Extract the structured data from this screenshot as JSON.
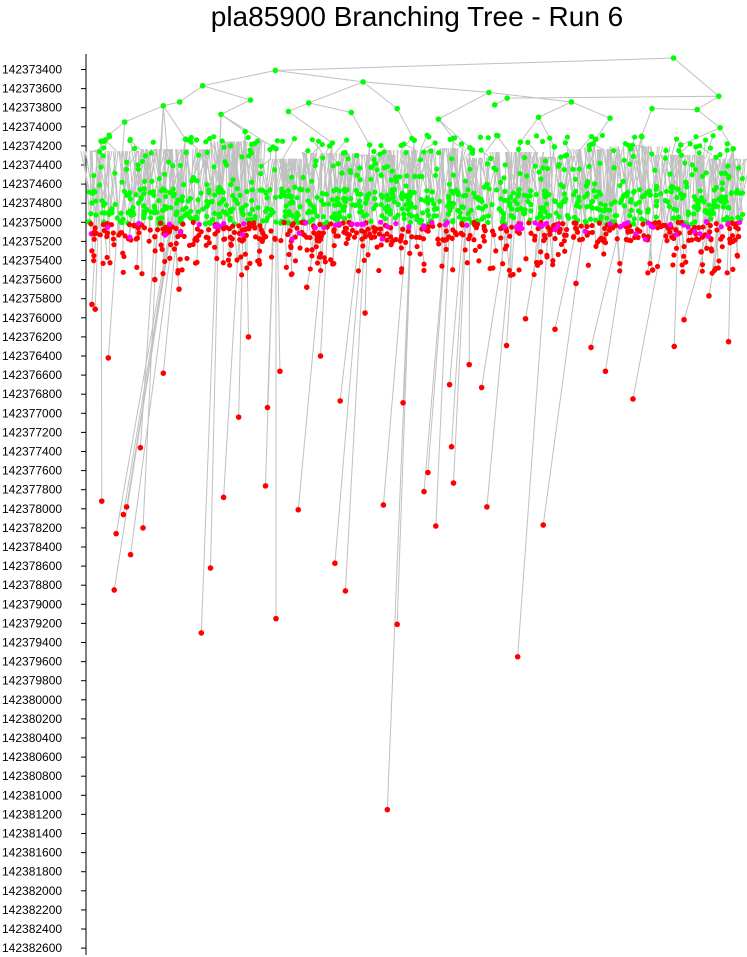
{
  "chart_data": {
    "type": "scatter",
    "title": "pla85900 Branching Tree - Run 6",
    "xlabel": "",
    "ylabel": "",
    "y_axis": {
      "inverted": true,
      "min": 142373300,
      "max": 142382600,
      "tick_step": 200,
      "tick_labels": [
        "142373400",
        "142373600",
        "142373800",
        "142374000",
        "142374200",
        "142374400",
        "142374600",
        "142374800",
        "142375000",
        "142375200",
        "142375400",
        "142375600",
        "142375800",
        "142376000",
        "142376200",
        "142376400",
        "142376600",
        "142376800",
        "142377000",
        "142377200",
        "142377400",
        "142377600",
        "142377800",
        "142378000",
        "142378200",
        "142378400",
        "142378600",
        "142378800",
        "142379000",
        "142379200",
        "142379400",
        "142379600",
        "142379800",
        "142380000",
        "142380200",
        "142380400",
        "142380600",
        "142380800",
        "142381000",
        "142381200",
        "142381400",
        "142381600",
        "142381800",
        "142382000",
        "142382200",
        "142382400",
        "142382600"
      ]
    },
    "x_axis": {
      "visible": false,
      "min": 0,
      "max": 100
    },
    "grid": false,
    "legend": "none",
    "colors": {
      "upper": "#00ff00",
      "lower": "#ff0000",
      "boundary": "#ff00ff",
      "edge": "#c0c0c0"
    },
    "nodes": [
      {
        "id": "r",
        "x": 89.4,
        "y": 142373280,
        "c": "upper"
      },
      {
        "id": "a1",
        "x": 28.6,
        "y": 142373410,
        "c": "upper",
        "p": "r"
      },
      {
        "id": "a2",
        "x": 96.3,
        "y": 142373680,
        "c": "upper",
        "p": "r"
      },
      {
        "id": "b1",
        "x": 17.5,
        "y": 142373570,
        "c": "upper",
        "p": "a1"
      },
      {
        "id": "b2",
        "x": 42.0,
        "y": 142373530,
        "c": "upper",
        "p": "a1"
      },
      {
        "id": "b3",
        "x": 14.0,
        "y": 142373740,
        "c": "upper",
        "p": "b1"
      },
      {
        "id": "b4",
        "x": 24.8,
        "y": 142373720,
        "c": "upper",
        "p": "b1"
      },
      {
        "id": "b5",
        "x": 33.7,
        "y": 142373750,
        "c": "upper",
        "p": "b2"
      },
      {
        "id": "b6",
        "x": 61.2,
        "y": 142373640,
        "c": "upper",
        "p": "b2"
      },
      {
        "id": "b7",
        "x": 64.0,
        "y": 142373700,
        "c": "upper",
        "p": "a2"
      },
      {
        "id": "b8",
        "x": 93.0,
        "y": 142373820,
        "c": "upper",
        "p": "a2"
      },
      {
        "id": "b9",
        "x": 73.8,
        "y": 142373740,
        "c": "upper",
        "p": "b6"
      },
      {
        "id": "c1",
        "x": 11.5,
        "y": 142373780,
        "c": "upper",
        "p": "b3"
      },
      {
        "id": "c2",
        "x": 5.6,
        "y": 142373950,
        "c": "upper",
        "p": "c1"
      },
      {
        "id": "c3",
        "x": 20.3,
        "y": 142373870,
        "c": "upper",
        "p": "b4"
      },
      {
        "id": "c4",
        "x": 30.6,
        "y": 142373840,
        "c": "upper",
        "p": "b5"
      },
      {
        "id": "c5",
        "x": 40.2,
        "y": 142373850,
        "c": "upper",
        "p": "b5"
      },
      {
        "id": "c6",
        "x": 47.2,
        "y": 142373810,
        "c": "upper",
        "p": "b2"
      },
      {
        "id": "c7",
        "x": 53.5,
        "y": 142373920,
        "c": "upper",
        "p": "b6"
      },
      {
        "id": "c8",
        "x": 62.1,
        "y": 142373770,
        "c": "upper",
        "p": "b7"
      },
      {
        "id": "c9",
        "x": 68.8,
        "y": 142373900,
        "c": "upper",
        "p": "b9"
      },
      {
        "id": "c10",
        "x": 79.7,
        "y": 142373910,
        "c": "upper",
        "p": "b9"
      },
      {
        "id": "c11",
        "x": 86.1,
        "y": 142373810,
        "c": "upper",
        "p": "b8"
      },
      {
        "id": "c12",
        "x": 96.5,
        "y": 142374010,
        "c": "upper",
        "p": "b8"
      },
      {
        "id": "m1",
        "x": 2.0,
        "y": 142374150,
        "c": "upper",
        "p": "c2"
      },
      {
        "id": "m2",
        "x": 14.9,
        "y": 142374130,
        "c": "upper",
        "p": "c1"
      },
      {
        "id": "m3",
        "x": 24.0,
        "y": 142374050,
        "c": "upper",
        "p": "c3"
      },
      {
        "id": "m4",
        "x": 28.7,
        "y": 142374230,
        "c": "upper",
        "p": "c3"
      },
      {
        "id": "m5",
        "x": 37.3,
        "y": 142374170,
        "c": "upper",
        "p": "c4"
      },
      {
        "id": "m6",
        "x": 43.0,
        "y": 142374190,
        "c": "upper",
        "p": "c5"
      },
      {
        "id": "m7",
        "x": 49.8,
        "y": 142374140,
        "c": "upper",
        "p": "c6"
      },
      {
        "id": "m8",
        "x": 55.8,
        "y": 142374120,
        "c": "upper",
        "p": "c7"
      },
      {
        "id": "m9",
        "x": 58.3,
        "y": 142374220,
        "c": "upper",
        "p": "c7"
      },
      {
        "id": "m10",
        "x": 66.0,
        "y": 142374160,
        "c": "upper",
        "p": "c9"
      },
      {
        "id": "m11",
        "x": 71.2,
        "y": 142374210,
        "c": "upper",
        "p": "c9"
      },
      {
        "id": "m12",
        "x": 77.5,
        "y": 142374130,
        "c": "upper",
        "p": "c10"
      },
      {
        "id": "m13",
        "x": 84.5,
        "y": 142374100,
        "c": "upper",
        "p": "c11"
      },
      {
        "id": "m14",
        "x": 90.5,
        "y": 142374190,
        "c": "upper",
        "p": "c12"
      },
      {
        "id": "m15",
        "x": 98.5,
        "y": 142374230,
        "c": "upper",
        "p": "c12"
      },
      {
        "id": "k1",
        "x": 0.9,
        "y": 142375120,
        "c": "lower",
        "p": "m1"
      },
      {
        "id": "k2",
        "x": 0.6,
        "y": 142375860,
        "c": "lower",
        "p": "m1"
      },
      {
        "id": "k3",
        "x": 1.1,
        "y": 142375910,
        "c": "lower",
        "p": "m1"
      },
      {
        "id": "k4",
        "x": 3.1,
        "y": 142376420,
        "c": "lower",
        "p": "c2"
      },
      {
        "id": "k5",
        "x": 2.1,
        "y": 142377920,
        "c": "lower",
        "p": "m1"
      },
      {
        "id": "k6",
        "x": 5.4,
        "y": 142378060,
        "c": "lower",
        "p": "m2"
      },
      {
        "id": "k7",
        "x": 4.3,
        "y": 142378260,
        "c": "lower",
        "p": "m2"
      },
      {
        "id": "k8",
        "x": 5.9,
        "y": 142377980,
        "c": "lower",
        "p": "m2"
      },
      {
        "id": "k9",
        "x": 6.5,
        "y": 142378480,
        "c": "lower",
        "p": "m2"
      },
      {
        "id": "k10",
        "x": 4.0,
        "y": 142378850,
        "c": "lower",
        "p": "m2"
      },
      {
        "id": "k11",
        "x": 8.0,
        "y": 142377360,
        "c": "lower",
        "p": "c1"
      },
      {
        "id": "k12",
        "x": 8.4,
        "y": 142378200,
        "c": "lower",
        "p": "c1"
      },
      {
        "id": "k13",
        "x": 11.5,
        "y": 142376580,
        "c": "lower",
        "p": "m2"
      },
      {
        "id": "k14",
        "x": 17.3,
        "y": 142379300,
        "c": "lower",
        "p": "c3"
      },
      {
        "id": "k15",
        "x": 18.7,
        "y": 142378620,
        "c": "lower",
        "p": "c3"
      },
      {
        "id": "k16",
        "x": 20.7,
        "y": 142377880,
        "c": "lower",
        "p": "m3"
      },
      {
        "id": "k17",
        "x": 23.0,
        "y": 142377040,
        "c": "lower",
        "p": "m3"
      },
      {
        "id": "k18",
        "x": 27.1,
        "y": 142377760,
        "c": "lower",
        "p": "m4"
      },
      {
        "id": "k19",
        "x": 27.4,
        "y": 142376940,
        "c": "lower",
        "p": "m4"
      },
      {
        "id": "k20",
        "x": 28.7,
        "y": 142379150,
        "c": "lower",
        "p": "m4"
      },
      {
        "id": "k21",
        "x": 29.3,
        "y": 142376560,
        "c": "lower",
        "p": "m4"
      },
      {
        "id": "k22",
        "x": 32.1,
        "y": 142378010,
        "c": "lower",
        "p": "m5"
      },
      {
        "id": "k23",
        "x": 35.5,
        "y": 142376400,
        "c": "lower",
        "p": "m5"
      },
      {
        "id": "k24",
        "x": 37.7,
        "y": 142378570,
        "c": "lower",
        "p": "m6"
      },
      {
        "id": "k25",
        "x": 38.5,
        "y": 142376870,
        "c": "lower",
        "p": "m6"
      },
      {
        "id": "k26",
        "x": 39.3,
        "y": 142378860,
        "c": "lower",
        "p": "m6"
      },
      {
        "id": "k27",
        "x": 45.1,
        "y": 142377960,
        "c": "lower",
        "p": "m7"
      },
      {
        "id": "k28",
        "x": 45.7,
        "y": 142381150,
        "c": "lower",
        "p": "m7"
      },
      {
        "id": "k29",
        "x": 47.2,
        "y": 142379210,
        "c": "lower",
        "p": "m7"
      },
      {
        "id": "k30",
        "x": 48.1,
        "y": 142376890,
        "c": "lower",
        "p": "m7"
      },
      {
        "id": "k31",
        "x": 51.3,
        "y": 142377820,
        "c": "lower",
        "p": "m8"
      },
      {
        "id": "k32",
        "x": 51.9,
        "y": 142377620,
        "c": "lower",
        "p": "m8"
      },
      {
        "id": "k33",
        "x": 53.1,
        "y": 142378180,
        "c": "lower",
        "p": "m8"
      },
      {
        "id": "k34",
        "x": 55.8,
        "y": 142377730,
        "c": "lower",
        "p": "m9"
      },
      {
        "id": "k35",
        "x": 55.5,
        "y": 142377350,
        "c": "lower",
        "p": "m9"
      },
      {
        "id": "k36",
        "x": 55.2,
        "y": 142376700,
        "c": "lower",
        "p": "m9"
      },
      {
        "id": "k37",
        "x": 58.2,
        "y": 142376490,
        "c": "lower",
        "p": "m9"
      },
      {
        "id": "k38",
        "x": 60.1,
        "y": 142376730,
        "c": "lower",
        "p": "m10"
      },
      {
        "id": "k39",
        "x": 60.9,
        "y": 142377980,
        "c": "lower",
        "p": "m10"
      },
      {
        "id": "k40",
        "x": 65.6,
        "y": 142379550,
        "c": "lower",
        "p": "m11"
      },
      {
        "id": "k41",
        "x": 66.8,
        "y": 142376010,
        "c": "lower",
        "p": "m11"
      },
      {
        "id": "k42",
        "x": 69.5,
        "y": 142378170,
        "c": "lower",
        "p": "m12"
      },
      {
        "id": "k43",
        "x": 71.3,
        "y": 142376120,
        "c": "lower",
        "p": "m12"
      },
      {
        "id": "k44",
        "x": 76.8,
        "y": 142376310,
        "c": "lower",
        "p": "m13"
      },
      {
        "id": "k45",
        "x": 79.0,
        "y": 142376560,
        "c": "lower",
        "p": "m13"
      },
      {
        "id": "k46",
        "x": 83.2,
        "y": 142376850,
        "c": "lower",
        "p": "m14"
      },
      {
        "id": "k47",
        "x": 89.5,
        "y": 142376300,
        "c": "lower",
        "p": "m14"
      },
      {
        "id": "k48",
        "x": 91.0,
        "y": 142376020,
        "c": "lower",
        "p": "m15"
      },
      {
        "id": "k49",
        "x": 93.6,
        "y": 142375310,
        "c": "lower",
        "p": "m15"
      },
      {
        "id": "k50",
        "x": 94.8,
        "y": 142375770,
        "c": "lower",
        "p": "m15"
      },
      {
        "id": "k51",
        "x": 97.8,
        "y": 142376250,
        "c": "lower",
        "p": "m15"
      },
      {
        "id": "k52",
        "x": 99.3,
        "y": 142375150,
        "c": "lower",
        "p": "m15"
      },
      {
        "id": "k53",
        "x": 24.5,
        "y": 142376200,
        "c": "lower",
        "p": "m3"
      },
      {
        "id": "k54",
        "x": 13.9,
        "y": 142375700,
        "c": "lower",
        "p": "c1"
      },
      {
        "id": "k55",
        "x": 42.3,
        "y": 142375950,
        "c": "lower",
        "p": "m6"
      },
      {
        "id": "k56",
        "x": 63.9,
        "y": 142376290,
        "c": "lower",
        "p": "m10"
      },
      {
        "id": "k57",
        "x": 33.4,
        "y": 142375680,
        "c": "lower",
        "p": "m5"
      },
      {
        "id": "k58",
        "x": 74.5,
        "y": 142375640,
        "c": "lower",
        "p": "m12"
      },
      {
        "id": "k59",
        "x": 86.2,
        "y": 142375500,
        "c": "lower",
        "p": "m13"
      },
      {
        "id": "k60",
        "x": 10.2,
        "y": 142375600,
        "c": "lower",
        "p": "c1"
      }
    ],
    "bands": [
      {
        "name": "green-band",
        "c": "upper",
        "count": 900,
        "ymin": 142374080,
        "ymax": 142375020,
        "dense_from": 142374650
      },
      {
        "name": "red-band",
        "c": "lower",
        "count": 520,
        "ymin": 142375000,
        "ymax": 142375560,
        "dense_to": 142375200
      },
      {
        "name": "magenta-band",
        "c": "boundary",
        "count": 70,
        "ymin": 142374990,
        "ymax": 142375180,
        "dense_to": 142375060
      }
    ]
  }
}
